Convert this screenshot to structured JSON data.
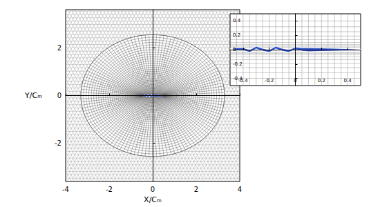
{
  "chart_data": [
    {
      "type": "mesh",
      "xlabel": "X/Cₘ",
      "ylabel": "Y/Cₘ",
      "xlim": [
        -4,
        4
      ],
      "ylim": [
        -3.6,
        3.6
      ],
      "xticks": [
        -4,
        -2,
        0,
        2,
        4
      ],
      "yticks": [
        -2,
        0,
        2
      ],
      "color": "#3355cc",
      "x": [
        -0.5,
        -0.45,
        -0.4,
        -0.35,
        -0.3,
        -0.25,
        -0.2,
        -0.15,
        -0.1,
        -0.05,
        0,
        0.05,
        0.1,
        0.2,
        0.3,
        0.4,
        0.5,
        0.5,
        0.4,
        0.3,
        0.2,
        0.1,
        0.05,
        0,
        -0.05,
        -0.1,
        -0.15,
        -0.2,
        -0.25,
        -0.3,
        -0.35,
        -0.4,
        -0.45,
        -0.5
      ],
      "y": [
        0.01,
        0.03,
        0.03,
        0.0,
        0.05,
        0.02,
        0.0,
        0.05,
        0.02,
        0.0,
        0.04,
        0.03,
        0.03,
        0.025,
        0.02,
        0.015,
        0.005,
        -0.005,
        -0.015,
        -0.02,
        -0.025,
        -0.03,
        -0.02,
        0.0,
        -0.04,
        -0.02,
        0.01,
        -0.04,
        -0.02,
        0.01,
        -0.04,
        -0.01,
        -0.01,
        0.01
      ]
    },
    {
      "type": "mesh",
      "xlim": [
        -0.5,
        0.5
      ],
      "ylim": [
        -0.5,
        0.5
      ],
      "xticks": [
        -0.4,
        -0.2,
        0,
        0.2,
        0.4
      ],
      "yticks": [
        -0.4,
        -0.2,
        0,
        0.2,
        0.4
      ],
      "color": "#3355cc",
      "x": [
        -0.5,
        -0.45,
        -0.4,
        -0.35,
        -0.3,
        -0.25,
        -0.2,
        -0.15,
        -0.1,
        -0.05,
        0,
        0.05,
        0.1,
        0.2,
        0.3,
        0.4,
        0.5,
        0.5,
        0.4,
        0.3,
        0.2,
        0.1,
        0.05,
        0,
        -0.05,
        -0.1,
        -0.15,
        -0.2,
        -0.25,
        -0.3,
        -0.35,
        -0.4,
        -0.45,
        -0.5
      ],
      "y": [
        0.01,
        0.03,
        0.03,
        0.0,
        0.05,
        0.02,
        0.0,
        0.05,
        0.02,
        0.0,
        0.04,
        0.03,
        0.03,
        0.025,
        0.02,
        0.015,
        0.005,
        -0.005,
        -0.015,
        -0.02,
        -0.025,
        -0.03,
        -0.02,
        0.0,
        -0.04,
        -0.02,
        0.01,
        -0.04,
        -0.02,
        0.01,
        -0.04,
        -0.01,
        -0.01,
        0.01
      ]
    }
  ]
}
